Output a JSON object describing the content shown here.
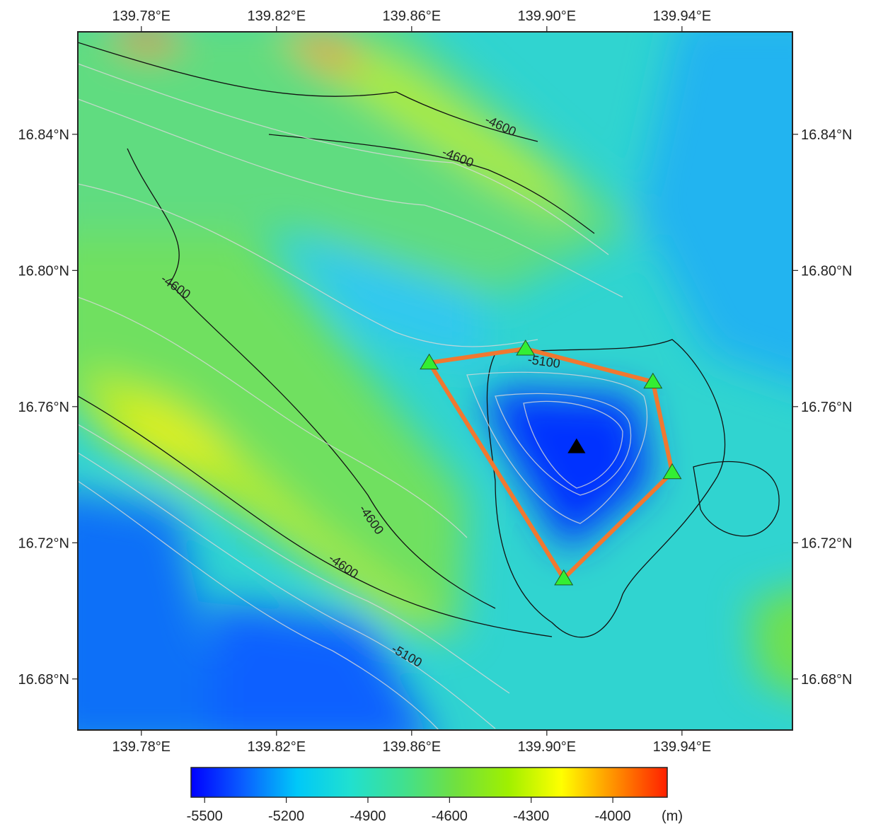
{
  "map": {
    "lonlim": [
      139.7612,
      139.9727
    ],
    "latlim": [
      16.665,
      16.8701
    ],
    "lonticks": [
      {
        "value": 139.78,
        "label": "139.78°E"
      },
      {
        "value": 139.82,
        "label": "139.82°E"
      },
      {
        "value": 139.86,
        "label": "139.86°E"
      },
      {
        "value": 139.9,
        "label": "139.90°E"
      },
      {
        "value": 139.94,
        "label": "139.94°E"
      }
    ],
    "latticks": [
      {
        "value": 16.84,
        "label": "16.84°N"
      },
      {
        "value": 16.8,
        "label": "16.80°N"
      },
      {
        "value": 16.76,
        "label": "16.76°N"
      },
      {
        "value": 16.72,
        "label": "16.72°N"
      },
      {
        "value": 16.68,
        "label": "16.68°N"
      }
    ],
    "contour_labels": [
      -4600,
      -4600,
      -4600,
      -5100,
      -4600,
      -4600,
      -5100
    ],
    "stations": [
      {
        "lon": 139.8652,
        "lat": 16.7729
      },
      {
        "lon": 139.8937,
        "lat": 16.777
      },
      {
        "lon": 139.9314,
        "lat": 16.7673
      },
      {
        "lon": 139.9371,
        "lat": 16.7407
      },
      {
        "lon": 139.905,
        "lat": 16.7095
      }
    ],
    "center": {
      "lon": 139.9088,
      "lat": 16.7482
    },
    "station_color": "#33ee33",
    "line_color": "#f07830",
    "colorbar": {
      "lim": [
        -5550,
        -3800
      ],
      "ticks": [
        -5500,
        -5200,
        -4900,
        -4600,
        -4300,
        -4000
      ],
      "unit": "(m)",
      "colormap": [
        "#0000ff",
        "#0a60ff",
        "#00c8f8",
        "#20e0d0",
        "#40e090",
        "#70e040",
        "#a0f000",
        "#ffff00",
        "#ff9000",
        "#ff2000"
      ]
    }
  }
}
